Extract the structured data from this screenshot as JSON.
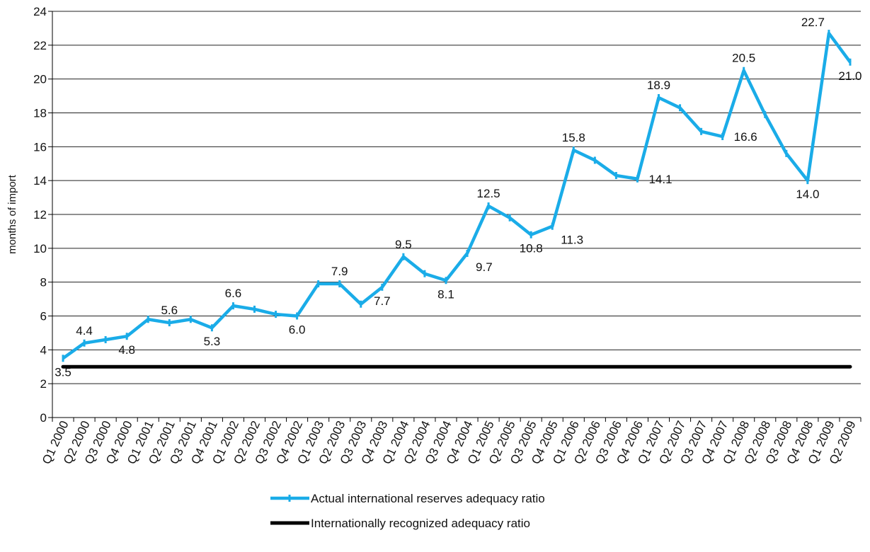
{
  "chart_data": {
    "type": "line",
    "ylabel": "months of import",
    "ylim": [
      0,
      24
    ],
    "yticks": [
      0,
      2,
      4,
      6,
      8,
      10,
      12,
      14,
      16,
      18,
      20,
      22,
      24
    ],
    "grid": "horizontal",
    "legend_position": "bottom-center",
    "categories": [
      "Q1 2000",
      "Q2 2000",
      "Q3 2000",
      "Q4 2000",
      "Q1 2001",
      "Q2 2001",
      "Q3 2001",
      "Q4 2001",
      "Q1 2002",
      "Q2 2002",
      "Q3 2002",
      "Q4 2002",
      "Q1 2003",
      "Q2 2003",
      "Q3 2003",
      "Q4 2003",
      "Q1 2004",
      "Q2 2004",
      "Q3 2004",
      "Q4 2004",
      "Q1 2005",
      "Q2 2005",
      "Q3 2005",
      "Q4 2005",
      "Q1 2006",
      "Q2 2006",
      "Q3 2006",
      "Q4 2006",
      "Q1 2007",
      "Q2 2007",
      "Q3 2007",
      "Q4 2007",
      "Q1 2008",
      "Q2 2008",
      "Q3 2008",
      "Q4 2008",
      "Q1 2009",
      "Q2 2009"
    ],
    "series": [
      {
        "name": "Actual international reserves adequacy ratio",
        "color": "#1aace8",
        "values": [
          3.5,
          4.4,
          4.6,
          4.8,
          5.8,
          5.6,
          5.8,
          5.3,
          6.6,
          6.4,
          6.1,
          6.0,
          7.9,
          7.9,
          6.7,
          7.7,
          9.5,
          8.5,
          8.1,
          9.7,
          12.5,
          11.8,
          10.8,
          11.3,
          15.8,
          15.2,
          14.3,
          14.1,
          18.9,
          18.3,
          16.9,
          16.6,
          20.5,
          17.9,
          15.6,
          14.0,
          22.7,
          21.0
        ]
      },
      {
        "name": "Internationally recognized adequacy ratio",
        "color": "#000000",
        "values": [
          3,
          3,
          3,
          3,
          3,
          3,
          3,
          3,
          3,
          3,
          3,
          3,
          3,
          3,
          3,
          3,
          3,
          3,
          3,
          3,
          3,
          3,
          3,
          3,
          3,
          3,
          3,
          3,
          3,
          3,
          3,
          3,
          3,
          3,
          3,
          3,
          3,
          3
        ]
      }
    ],
    "data_labels": [
      {
        "index": 0,
        "text": "3.5",
        "pos": "below"
      },
      {
        "index": 1,
        "text": "4.4",
        "pos": "above"
      },
      {
        "index": 3,
        "text": "4.8",
        "pos": "below"
      },
      {
        "index": 5,
        "text": "5.6",
        "pos": "above"
      },
      {
        "index": 7,
        "text": "5.3",
        "pos": "below"
      },
      {
        "index": 8,
        "text": "6.6",
        "pos": "above"
      },
      {
        "index": 11,
        "text": "6.0",
        "pos": "below"
      },
      {
        "index": 13,
        "text": "7.9",
        "pos": "above"
      },
      {
        "index": 15,
        "text": "7.7",
        "pos": "below"
      },
      {
        "index": 16,
        "text": "9.5",
        "pos": "above"
      },
      {
        "index": 18,
        "text": "8.1",
        "pos": "below"
      },
      {
        "index": 19,
        "text": "9.7",
        "pos": "below-right"
      },
      {
        "index": 20,
        "text": "12.5",
        "pos": "above"
      },
      {
        "index": 22,
        "text": "10.8",
        "pos": "below"
      },
      {
        "index": 23,
        "text": "11.3",
        "pos": "below-right"
      },
      {
        "index": 24,
        "text": "15.8",
        "pos": "above"
      },
      {
        "index": 27,
        "text": "14.1",
        "pos": "right"
      },
      {
        "index": 28,
        "text": "18.9",
        "pos": "above"
      },
      {
        "index": 31,
        "text": "16.6",
        "pos": "right"
      },
      {
        "index": 32,
        "text": "20.5",
        "pos": "above"
      },
      {
        "index": 35,
        "text": "14.0",
        "pos": "below"
      },
      {
        "index": 36,
        "text": "22.7",
        "pos": "above-left"
      },
      {
        "index": 37,
        "text": "21.0",
        "pos": "below"
      }
    ]
  }
}
